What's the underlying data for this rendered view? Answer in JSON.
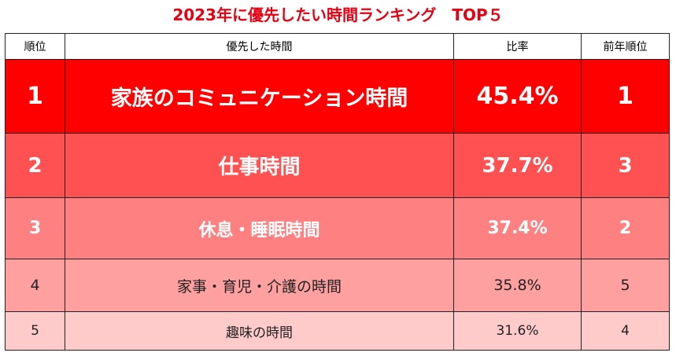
{
  "title": "2023年に優先したい時間ランキング　TOP５",
  "headers": {
    "rank": "順位",
    "item": "優先した時間",
    "ratio": "比率",
    "prev_rank": "前年順位"
  },
  "rows": [
    {
      "rank": "1",
      "item": "家族のコミュニケーション時間",
      "ratio": "45.4%",
      "prev_rank": "1"
    },
    {
      "rank": "2",
      "item": "仕事時間",
      "ratio": "37.7%",
      "prev_rank": "3"
    },
    {
      "rank": "3",
      "item": "休息・睡眠時間",
      "ratio": "37.4%",
      "prev_rank": "2"
    },
    {
      "rank": "4",
      "item": "家事・育児・介護の時間",
      "ratio": "35.8%",
      "prev_rank": "5"
    },
    {
      "rank": "5",
      "item": "趣味の時間",
      "ratio": "31.6%",
      "prev_rank": "4"
    }
  ],
  "colors": {
    "title": "#e60012",
    "row_backgrounds": [
      "#ff0000",
      "#ff5151",
      "#ff8080",
      "#ffa0a0",
      "#ffcaca"
    ]
  }
}
